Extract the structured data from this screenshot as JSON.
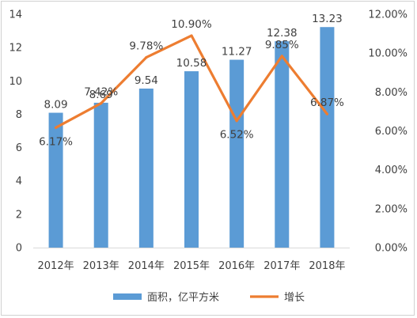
{
  "chart_data": {
    "type": "bar",
    "categories": [
      "2012年",
      "2013年",
      "2014年",
      "2015年",
      "2016年",
      "2017年",
      "2018年"
    ],
    "series": [
      {
        "name": "面积，亿平方米",
        "type": "bar",
        "axis": "left",
        "color": "#5b9bd5",
        "values": [
          8.09,
          8.69,
          9.54,
          10.58,
          11.27,
          12.38,
          13.23
        ],
        "labels": [
          "8.09",
          "8.69",
          "9.54",
          "10.58",
          "11.27",
          "12.38",
          "13.23"
        ]
      },
      {
        "name": "增长",
        "type": "line",
        "axis": "right",
        "color": "#ed7d31",
        "values": [
          6.17,
          7.42,
          9.78,
          10.9,
          6.52,
          9.85,
          6.87
        ],
        "labels": [
          "6.17%",
          "7.42%",
          "9.78%",
          "10.90%",
          "6.52%",
          "9.85%",
          "6.87%"
        ]
      }
    ],
    "y_left": {
      "ylim": [
        0,
        14
      ],
      "ticks": [
        "0",
        "2",
        "4",
        "6",
        "8",
        "10",
        "12",
        "14"
      ]
    },
    "y_right": {
      "ylim": [
        0,
        12
      ],
      "unit": "%",
      "ticks": [
        "0.00%",
        "2.00%",
        "4.00%",
        "6.00%",
        "8.00%",
        "10.00%",
        "12.00%"
      ]
    },
    "title": "",
    "xlabel": "",
    "grid": false,
    "legend_position": "bottom"
  }
}
